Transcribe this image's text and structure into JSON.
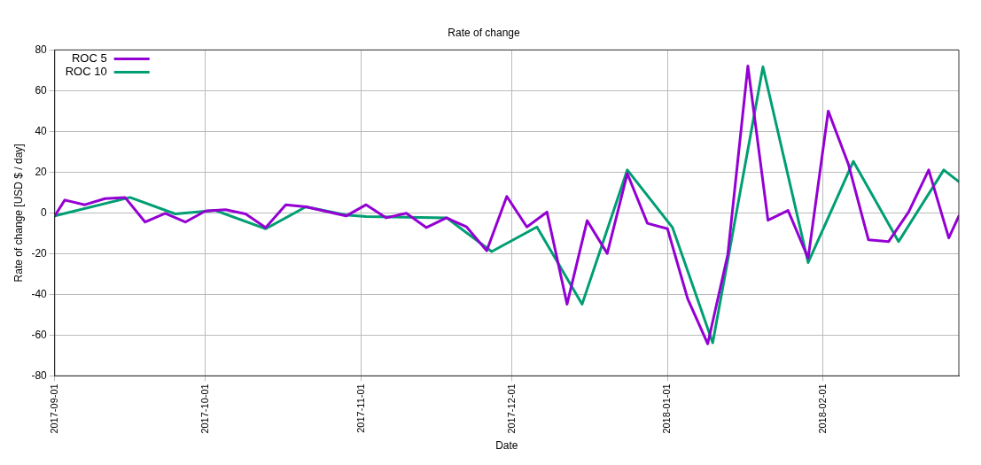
{
  "chart_data": {
    "type": "line",
    "title": "Rate of change",
    "xlabel": "Date",
    "ylabel": "Rate of change [USD $ / day]",
    "xlim": [
      "2017-09-01",
      "2018-02-28"
    ],
    "xticks": [
      "2017-09-01",
      "2017-10-01",
      "2017-11-01",
      "2017-12-01",
      "2018-01-01",
      "2018-02-01"
    ],
    "ylim": [
      -80,
      80
    ],
    "yticks": [
      -80,
      -60,
      -40,
      -20,
      0,
      20,
      40,
      60,
      80
    ],
    "grid": true,
    "legend": "top left",
    "marker": "none",
    "line_style": "solid",
    "series": [
      {
        "name": "ROC 5",
        "color": "#9400d3",
        "x": [
          "2017-09-01",
          "2017-09-03",
          "2017-09-07",
          "2017-09-11",
          "2017-09-15",
          "2017-09-19",
          "2017-09-23",
          "2017-09-27",
          "2017-10-01",
          "2017-10-05",
          "2017-10-09",
          "2017-10-13",
          "2017-10-17",
          "2017-10-21",
          "2017-10-29",
          "2017-11-02",
          "2017-11-06",
          "2017-11-10",
          "2017-11-14",
          "2017-11-18",
          "2017-11-22",
          "2017-11-26",
          "2017-11-30",
          "2017-12-04",
          "2017-12-08",
          "2017-12-12",
          "2017-12-16",
          "2017-12-20",
          "2017-12-24",
          "2017-12-28",
          "2018-01-01",
          "2018-01-05",
          "2018-01-09",
          "2018-01-13",
          "2018-01-17",
          "2018-01-21",
          "2018-01-25",
          "2018-01-29",
          "2018-02-02",
          "2018-02-06",
          "2018-02-10",
          "2018-02-14",
          "2018-02-18",
          "2018-02-22",
          "2018-02-26",
          "2018-02-28"
        ],
        "values": [
          -1.5,
          6.3,
          4,
          7,
          7.6,
          -4.5,
          -0.2,
          -4.5,
          0.9,
          1.6,
          -0.5,
          -7.2,
          4,
          3,
          -1.5,
          4,
          -2.4,
          -0.2,
          -7.2,
          -2.4,
          -6.9,
          -18.6,
          8.1,
          -6.9,
          0.4,
          -44.8,
          -3.8,
          -19.9,
          19.3,
          -5.1,
          -7.8,
          -42.1,
          -64.3,
          -20.4,
          72.1,
          -3.6,
          1.2,
          -22.2,
          50,
          24,
          -13.2,
          -14.1,
          0.4,
          21.1,
          -12.3,
          -1.5
        ]
      },
      {
        "name": "ROC 10",
        "color": "#009e73",
        "x": [
          "2017-09-01",
          "2017-09-16",
          "2017-09-25",
          "2017-10-03",
          "2017-10-13",
          "2017-10-21",
          "2017-10-29",
          "2017-11-02",
          "2017-11-18",
          "2017-11-27",
          "2017-12-06",
          "2017-12-15",
          "2017-12-24",
          "2018-01-02",
          "2018-01-10",
          "2018-01-20",
          "2018-01-29",
          "2018-02-07",
          "2018-02-16",
          "2018-02-25",
          "2018-02-28"
        ],
        "values": [
          -1.5,
          7.6,
          -0.5,
          1.2,
          -7.8,
          3,
          -1,
          -1.8,
          -2.4,
          -19,
          -6.9,
          -44.8,
          21.1,
          -7.2,
          -63.8,
          71.7,
          -24.4,
          25.3,
          -14.1,
          21.1,
          15.3
        ]
      }
    ]
  }
}
